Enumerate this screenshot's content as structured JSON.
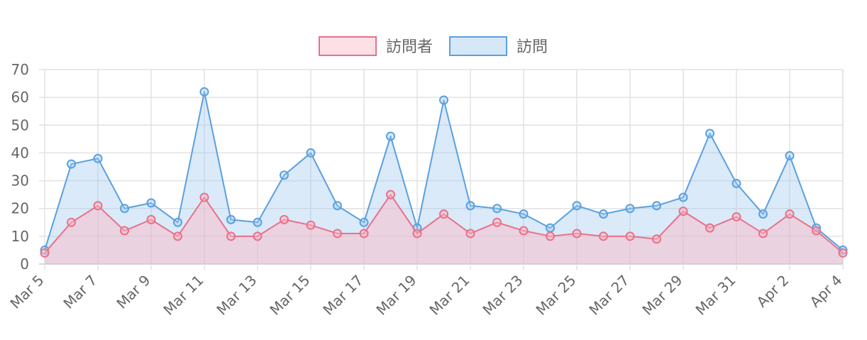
{
  "chart_data": {
    "type": "area",
    "categories": [
      "Mar 5",
      "Mar 6",
      "Mar 7",
      "Mar 8",
      "Mar 9",
      "Mar 10",
      "Mar 11",
      "Mar 12",
      "Mar 13",
      "Mar 14",
      "Mar 15",
      "Mar 16",
      "Mar 17",
      "Mar 18",
      "Mar 19",
      "Mar 20",
      "Mar 21",
      "Mar 22",
      "Mar 23",
      "Mar 24",
      "Mar 25",
      "Mar 26",
      "Mar 27",
      "Mar 28",
      "Mar 29",
      "Mar 30",
      "Mar 31",
      "Apr 1",
      "Apr 2",
      "Apr 3",
      "Apr 4"
    ],
    "x_tick_labels": [
      "Mar 5",
      "Mar 7",
      "Mar 9",
      "Mar 11",
      "Mar 13",
      "Mar 15",
      "Mar 17",
      "Mar 19",
      "Mar 21",
      "Mar 23",
      "Mar 25",
      "Mar 27",
      "Mar 29",
      "Mar 31",
      "Apr 2",
      "Apr 4"
    ],
    "ylim": [
      0,
      70
    ],
    "y_ticks": [
      0,
      10,
      20,
      30,
      40,
      50,
      60,
      70
    ],
    "grid": true,
    "legend_position": "top",
    "series": [
      {
        "name": "訪問者",
        "stroke": "#e8718a",
        "fill": "rgba(255,182,193,0.45)",
        "legend_fill": "#fde0e6",
        "values": [
          4,
          15,
          21,
          12,
          16,
          10,
          24,
          10,
          10,
          16,
          14,
          11,
          11,
          25,
          11,
          18,
          11,
          15,
          12,
          10,
          11,
          10,
          10,
          9,
          19,
          13,
          17,
          11,
          18,
          12,
          4
        ]
      },
      {
        "name": "訪問",
        "stroke": "#5aa0e0",
        "fill": "rgba(158,200,240,0.38)",
        "legend_fill": "#d6e7f8",
        "values": [
          5,
          36,
          38,
          20,
          22,
          15,
          62,
          16,
          15,
          32,
          40,
          21,
          15,
          46,
          13,
          59,
          21,
          20,
          18,
          13,
          21,
          18,
          20,
          21,
          24,
          47,
          29,
          18,
          39,
          13,
          5
        ]
      }
    ]
  }
}
